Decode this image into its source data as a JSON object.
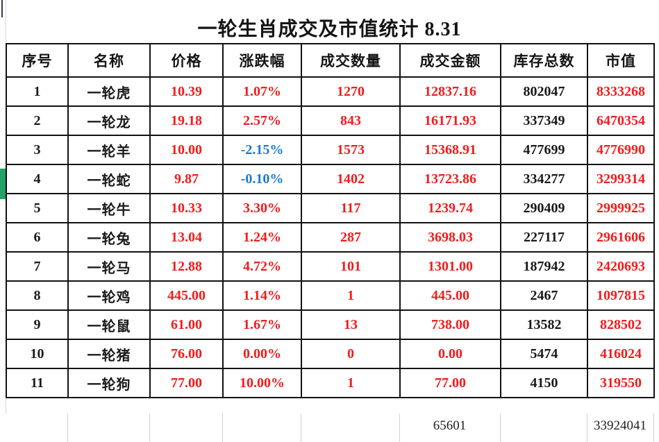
{
  "window": {
    "title": "一轮生肖成交及市值统计 8.31"
  },
  "table": {
    "columns": [
      {
        "key": "index",
        "label": "序号"
      },
      {
        "key": "name",
        "label": "名称"
      },
      {
        "key": "price",
        "label": "价格"
      },
      {
        "key": "change",
        "label": "涨跌幅"
      },
      {
        "key": "volume",
        "label": "成交数量"
      },
      {
        "key": "amount",
        "label": "成交金额"
      },
      {
        "key": "inventory",
        "label": "库存总数"
      },
      {
        "key": "market_value",
        "label": "市值"
      }
    ],
    "rows": [
      {
        "index": "1",
        "name": "一轮虎",
        "price": "10.39",
        "change": "1.07%",
        "change_direction": "up",
        "volume": "1270",
        "amount": "12837.16",
        "inventory": "802047",
        "market_value": "8333268"
      },
      {
        "index": "2",
        "name": "一轮龙",
        "price": "19.18",
        "change": "2.57%",
        "change_direction": "up",
        "volume": "843",
        "amount": "16171.93",
        "inventory": "337349",
        "market_value": "6470354"
      },
      {
        "index": "3",
        "name": "一轮羊",
        "price": "10.00",
        "change": "-2.15%",
        "change_direction": "down",
        "volume": "1573",
        "amount": "15368.91",
        "inventory": "477699",
        "market_value": "4776990"
      },
      {
        "index": "4",
        "name": "一轮蛇",
        "price": "9.87",
        "change": "-0.10%",
        "change_direction": "down",
        "volume": "1402",
        "amount": "13723.86",
        "inventory": "334277",
        "market_value": "3299314"
      },
      {
        "index": "5",
        "name": "一轮牛",
        "price": "10.33",
        "change": "3.30%",
        "change_direction": "up",
        "volume": "117",
        "amount": "1239.74",
        "inventory": "290409",
        "market_value": "2999925"
      },
      {
        "index": "6",
        "name": "一轮兔",
        "price": "13.04",
        "change": "1.24%",
        "change_direction": "up",
        "volume": "287",
        "amount": "3698.03",
        "inventory": "227117",
        "market_value": "2961606"
      },
      {
        "index": "7",
        "name": "一轮马",
        "price": "12.88",
        "change": "4.72%",
        "change_direction": "up",
        "volume": "101",
        "amount": "1301.00",
        "inventory": "187942",
        "market_value": "2420693"
      },
      {
        "index": "8",
        "name": "一轮鸡",
        "price": "445.00",
        "change": "1.14%",
        "change_direction": "up",
        "volume": "1",
        "amount": "445.00",
        "inventory": "2467",
        "market_value": "1097815"
      },
      {
        "index": "9",
        "name": "一轮鼠",
        "price": "61.00",
        "change": "1.67%",
        "change_direction": "up",
        "volume": "13",
        "amount": "738.00",
        "inventory": "13582",
        "market_value": "828502"
      },
      {
        "index": "10",
        "name": "一轮猪",
        "price": "76.00",
        "change": "0.00%",
        "change_direction": "up",
        "volume": "0",
        "amount": "0.00",
        "inventory": "5474",
        "market_value": "416024"
      },
      {
        "index": "11",
        "name": "一轮狗",
        "price": "77.00",
        "change": "10.00%",
        "change_direction": "up",
        "volume": "1",
        "amount": "77.00",
        "inventory": "4150",
        "market_value": "319550"
      }
    ],
    "totals": {
      "amount": "65601",
      "market_value": "33924041"
    }
  },
  "colors": {
    "gain_red": "#f21c1c",
    "loss_blue": "#1a7ad4",
    "plain_black": "#1a1a1a",
    "grid_black": "#111111",
    "grid_light": "#cfcfd4",
    "selection_green": "#21a366"
  }
}
